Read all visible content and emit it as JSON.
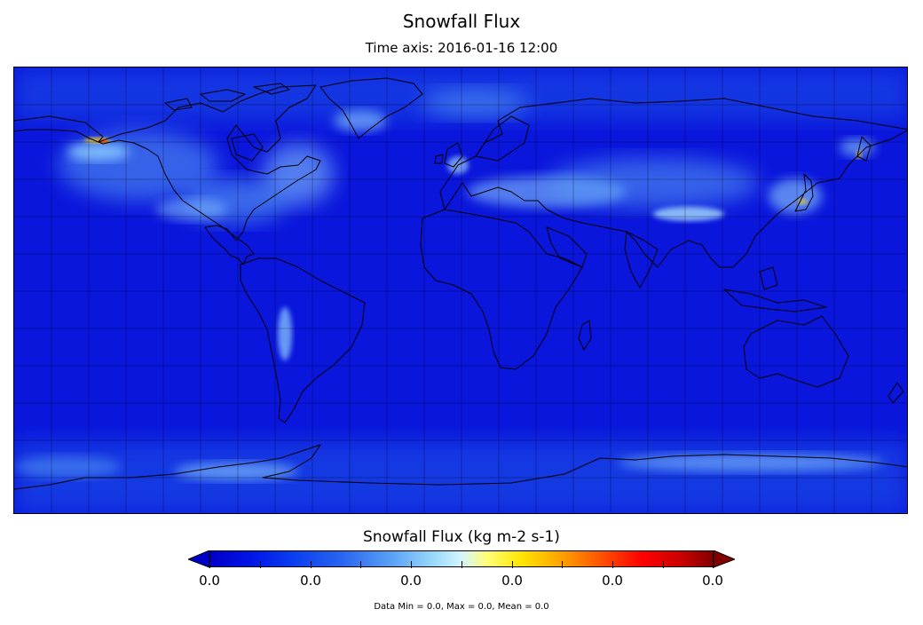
{
  "header": {
    "title": "Snowfall Flux",
    "subtitle": "Time axis: 2016-01-16 12:00"
  },
  "map": {
    "projection": "equirectangular",
    "gridlines": true,
    "colors": {
      "ocean_background": "#0a16dc",
      "snow_light": "#8fd0ff",
      "snow_heavy": "#ffd400",
      "snow_max": "#ff5a00",
      "coast": "#000000"
    }
  },
  "colorbar": {
    "title": "Snowfall Flux (kg m-2 s-1)",
    "tick_labels": [
      "0.0",
      "0.0",
      "0.0",
      "0.0",
      "0.0",
      "0.0"
    ],
    "extend": "both",
    "colors": {
      "min_arrow": "#0000c8",
      "max_arrow": "#820000"
    }
  },
  "footer": {
    "stats": "Data Min = 0.0, Max = 0.0, Mean = 0.0"
  }
}
